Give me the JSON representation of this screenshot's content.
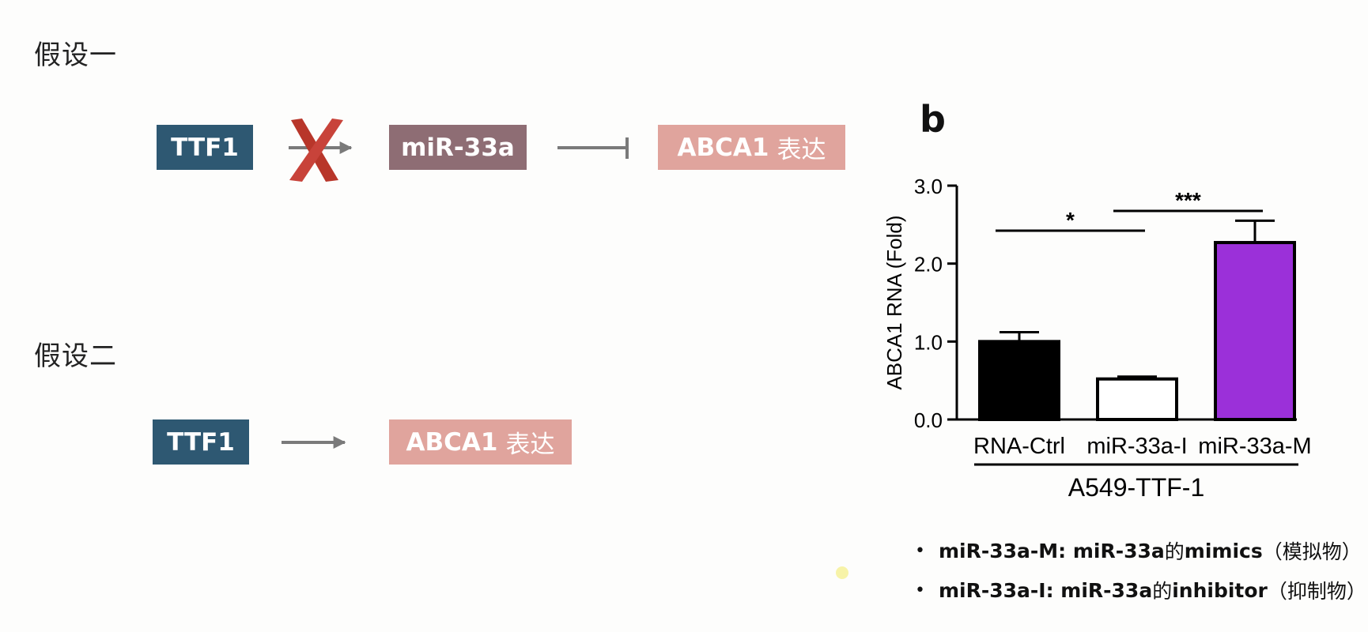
{
  "hypothesis1": {
    "heading": "假设一",
    "ttf_label": "TTF1",
    "mir_label": "miR-33a",
    "abca_bold": "ABCA1",
    "abca_cn": "表达"
  },
  "hypothesis2": {
    "heading": "假设二",
    "ttf_label": "TTF1",
    "abca_bold": "ABCA1",
    "abca_cn": "表达"
  },
  "colors": {
    "ttf": "#2e5872",
    "mir": "#8e6d74",
    "abca": "#e0a49d",
    "cross": "#c0392b",
    "arrow": "#7a7a7a"
  },
  "panel_label": "b",
  "chart_data": {
    "type": "bar",
    "categories": [
      "RNA-Ctrl",
      "miR-33a-I",
      "miR-33a-M"
    ],
    "values": [
      1.0,
      0.52,
      2.27
    ],
    "errors": [
      0.12,
      0.03,
      0.28
    ],
    "bar_colors": [
      "#000000",
      "#ffffff",
      "#9b30d9"
    ],
    "ylabel": "ABCA1 RNA (Fold)",
    "xgroup_label": "A549-TTF-1",
    "ylim": [
      0,
      3.0
    ],
    "yticks": [
      "0.0",
      "1.0",
      "2.0",
      "3.0"
    ],
    "significance": [
      {
        "from": "RNA-Ctrl",
        "to": "miR-33a-I",
        "label": "*"
      },
      {
        "from": "miR-33a-I",
        "to": "miR-33a-M",
        "label": "***"
      }
    ]
  },
  "notes": [
    {
      "bold1": "miR-33a-M: miR-33a",
      "normal1": " 的",
      "bold2": "mimics",
      "normal2": "（模拟物）"
    },
    {
      "bold1": "miR-33a-I: miR-33a",
      "normal1": " 的",
      "bold2": "inhibitor",
      "normal2": "（抑制物）"
    }
  ]
}
